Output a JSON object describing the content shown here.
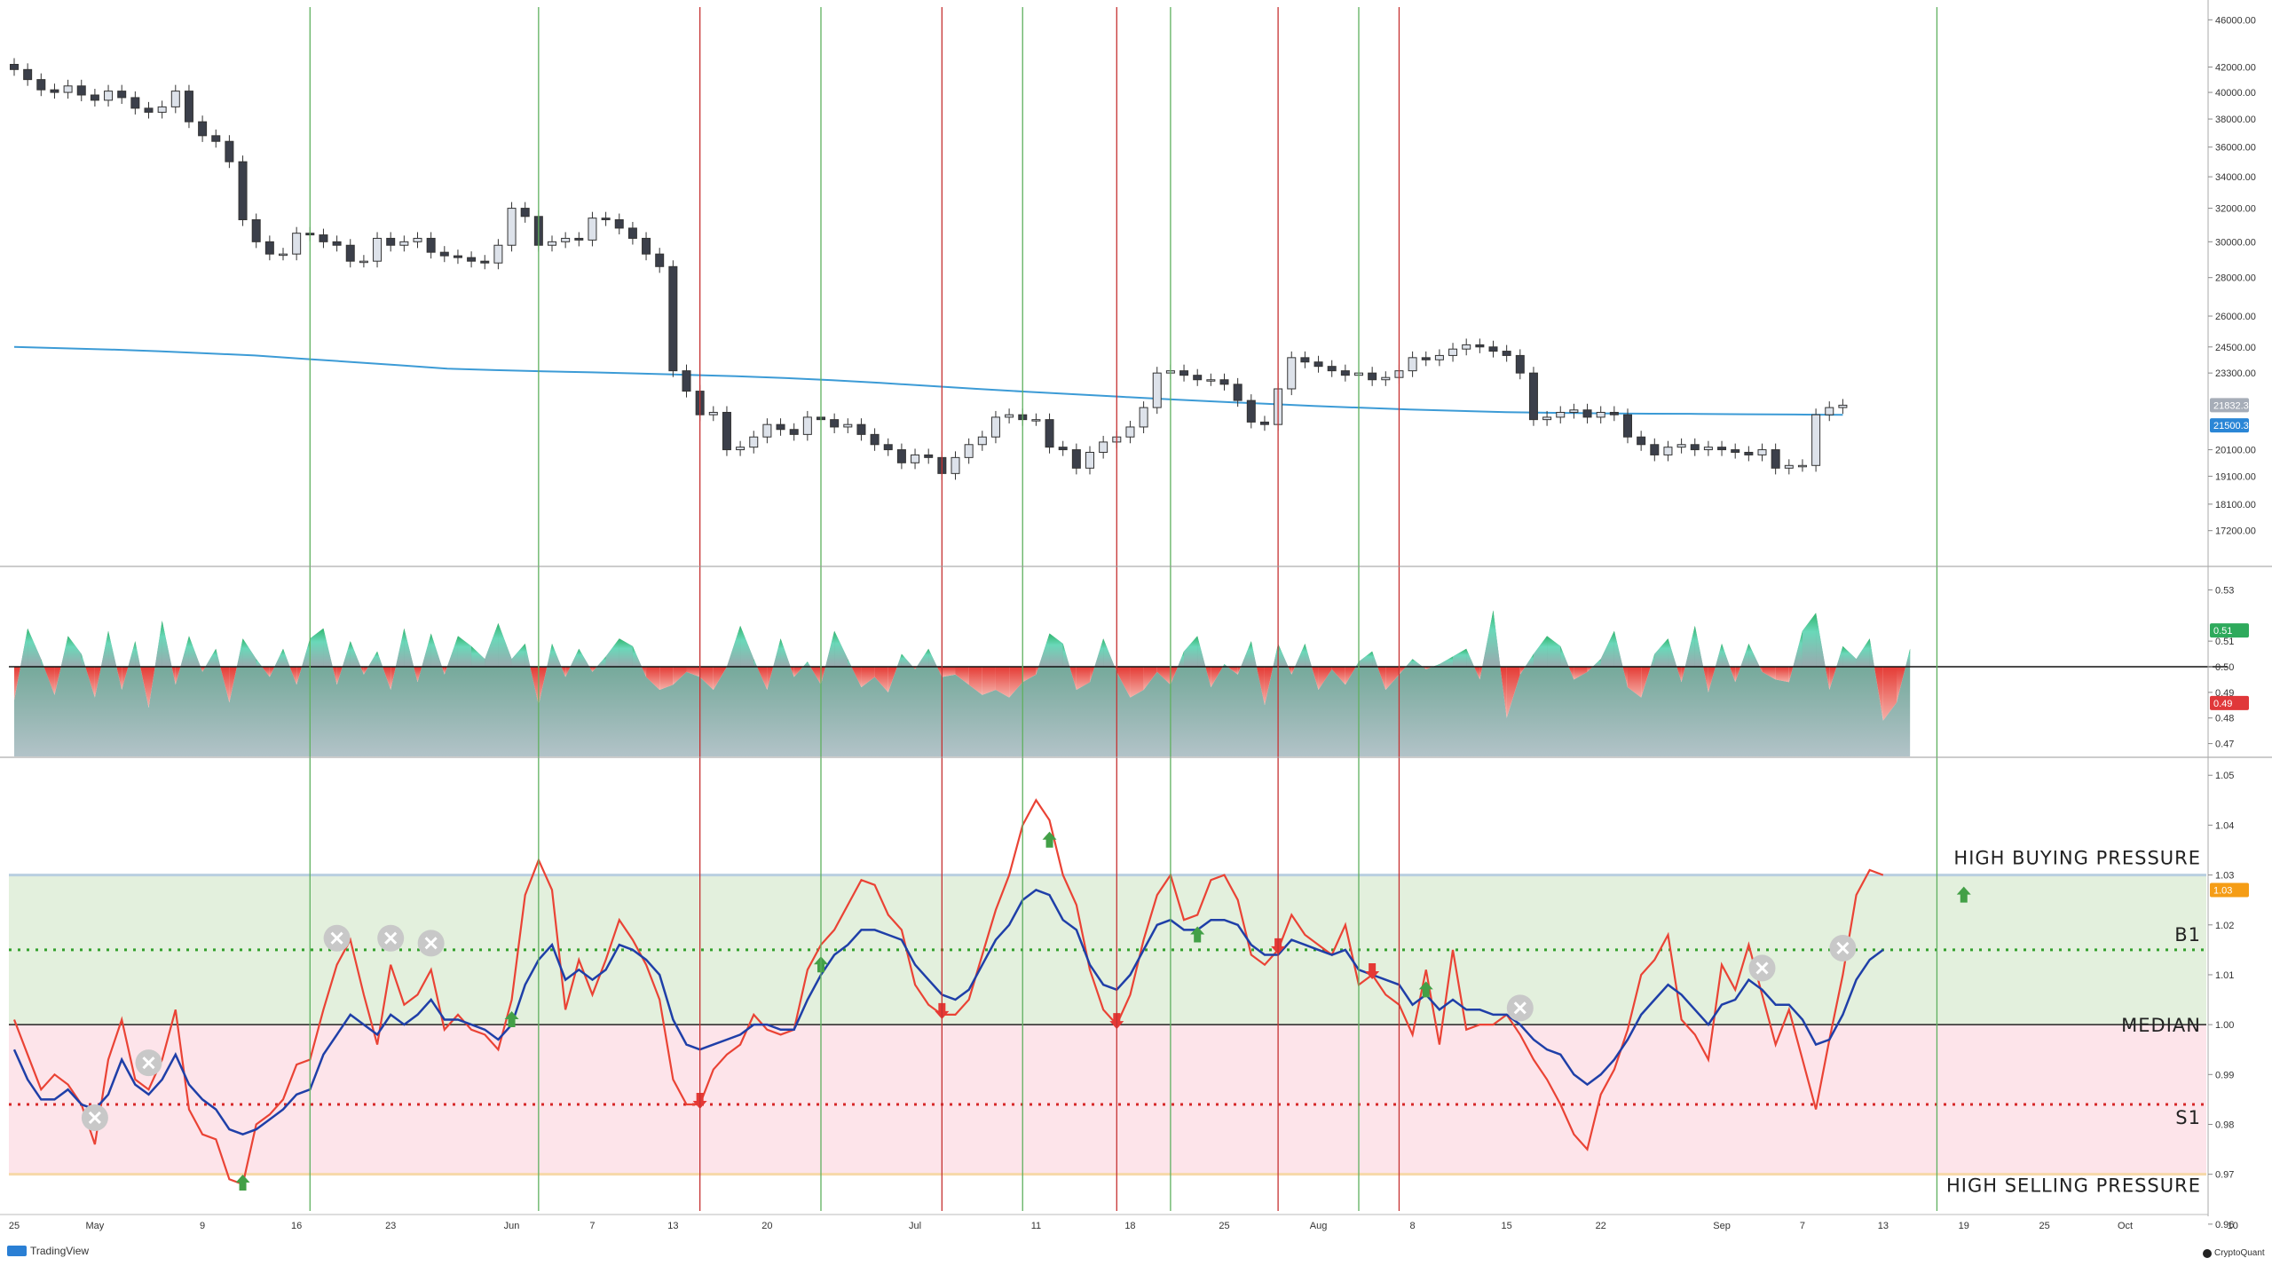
{
  "chart_data": {
    "type": "candlestick",
    "x_axis": {
      "tick_labels": [
        "25",
        "May",
        "9",
        "16",
        "23",
        "Jun",
        "7",
        "13",
        "20",
        "Jul",
        "11",
        "18",
        "25",
        "Aug",
        "8",
        "15",
        "22",
        "Sep",
        "7",
        "13",
        "19",
        "25",
        "Oct",
        "10"
      ],
      "tick_label_days": [
        0,
        6,
        14,
        21,
        28,
        37,
        43,
        49,
        56,
        67,
        76,
        83,
        90,
        97,
        104,
        111,
        118,
        127,
        133,
        139,
        145,
        151,
        157,
        165
      ]
    },
    "price_panel": {
      "y_scale": "log",
      "ylim": [
        16500,
        46500
      ],
      "y_tick_labels": [
        "46000.00",
        "42000.00",
        "40000.00",
        "38000.00",
        "36000.00",
        "34000.00",
        "32000.00",
        "30000.00",
        "28000.00",
        "26000.00",
        "24500.00",
        "23300.00",
        "20100.00",
        "19100.00",
        "18100.00",
        "17200.00"
      ],
      "y_tick_values": [
        46000,
        42000,
        40000,
        38000,
        36000,
        34000,
        32000,
        30000,
        28000,
        26000,
        24500,
        23300,
        20100,
        19100,
        18100,
        17200
      ],
      "close_prices": [
        41800,
        41000,
        40200,
        40000,
        40500,
        39800,
        39400,
        40100,
        39600,
        38800,
        38500,
        38900,
        40100,
        37800,
        36800,
        36400,
        35000,
        31300,
        30000,
        29300,
        29300,
        30500,
        30400,
        30000,
        29800,
        28900,
        28900,
        30200,
        29800,
        30000,
        30200,
        29400,
        29200,
        29100,
        28900,
        28800,
        29800,
        32000,
        31500,
        29800,
        30000,
        30200,
        30100,
        31400,
        31300,
        30800,
        30200,
        29300,
        28600,
        23400,
        22500,
        21500,
        21600,
        20100,
        20200,
        20600,
        21100,
        20900,
        20700,
        21400,
        21300,
        21000,
        21100,
        20700,
        20300,
        20100,
        19600,
        19900,
        19800,
        19200,
        19800,
        20300,
        20600,
        21400,
        21500,
        21300,
        21300,
        20200,
        20100,
        19400,
        20000,
        20400,
        20600,
        21000,
        21800,
        23300,
        23400,
        23200,
        23000,
        23000,
        22800,
        22100,
        21200,
        21100,
        22600,
        24000,
        23800,
        23600,
        23400,
        23200,
        23300,
        23000,
        23100,
        23400,
        24000,
        23900,
        24100,
        24400,
        24600,
        24500,
        24300,
        24100,
        23300,
        21300,
        21400,
        21600,
        21700,
        21400,
        21600,
        21500,
        20600,
        20300,
        19900,
        20200,
        20300,
        20100,
        20200,
        20100,
        20000,
        19900,
        20100,
        19400,
        19500,
        19500,
        21500,
        21800,
        21900
      ],
      "ma_label": "21500.32",
      "last_label": "21832.33",
      "ma_values": [
        24500,
        24440,
        24380,
        24300,
        24200,
        24100,
        23950,
        23800,
        23650,
        23500,
        23430,
        23380,
        23330,
        23280,
        23220,
        23160,
        23080,
        22980,
        22860,
        22730,
        22600,
        22480,
        22370,
        22260,
        22150,
        22050,
        21960,
        21870,
        21790,
        21720,
        21660,
        21610,
        21580,
        21560,
        21545,
        21535,
        21520,
        21510,
        21500
      ]
    },
    "ratio_panel": {
      "ylim": [
        0.465,
        0.535
      ],
      "y_tick_labels": [
        "0.53",
        "0.51",
        "0.50",
        "0.49",
        "0.48",
        "0.47"
      ],
      "y_tick_values": [
        0.53,
        0.51,
        0.5,
        0.49,
        0.48,
        0.47
      ],
      "baseline": 0.5,
      "badge_high": "0.51",
      "badge_low": "0.49",
      "values": [
        0.487,
        0.515,
        0.503,
        0.489,
        0.512,
        0.505,
        0.488,
        0.514,
        0.491,
        0.51,
        0.484,
        0.518,
        0.493,
        0.512,
        0.498,
        0.507,
        0.486,
        0.511,
        0.503,
        0.496,
        0.507,
        0.493,
        0.511,
        0.515,
        0.493,
        0.51,
        0.497,
        0.506,
        0.491,
        0.515,
        0.494,
        0.513,
        0.497,
        0.512,
        0.508,
        0.503,
        0.517,
        0.503,
        0.509,
        0.485,
        0.509,
        0.496,
        0.507,
        0.498,
        0.504,
        0.511,
        0.508,
        0.496,
        0.491,
        0.493,
        0.498,
        0.496,
        0.491,
        0.5,
        0.516,
        0.503,
        0.491,
        0.511,
        0.496,
        0.502,
        0.493,
        0.514,
        0.503,
        0.492,
        0.496,
        0.49,
        0.505,
        0.499,
        0.507,
        0.496,
        0.497,
        0.493,
        0.489,
        0.491,
        0.488,
        0.494,
        0.497,
        0.513,
        0.509,
        0.491,
        0.494,
        0.511,
        0.498,
        0.488,
        0.491,
        0.498,
        0.493,
        0.506,
        0.512,
        0.492,
        0.501,
        0.497,
        0.51,
        0.485,
        0.509,
        0.497,
        0.509,
        0.491,
        0.499,
        0.493,
        0.502,
        0.506,
        0.491,
        0.497,
        0.503,
        0.499,
        0.501,
        0.504,
        0.507,
        0.495,
        0.522,
        0.48,
        0.497,
        0.505,
        0.512,
        0.508,
        0.495,
        0.498,
        0.503,
        0.514,
        0.492,
        0.488,
        0.505,
        0.511,
        0.494,
        0.516,
        0.49,
        0.509,
        0.494,
        0.509,
        0.498,
        0.495,
        0.494,
        0.514,
        0.521,
        0.491,
        0.508,
        0.503,
        0.511,
        0.479,
        0.486,
        0.507
      ]
    },
    "oscillator_panel": {
      "ylim": [
        0.963,
        1.052
      ],
      "y_tick_labels": [
        "1.05",
        "1.04",
        "1.03",
        "1.02",
        "1.01",
        "1.00",
        "0.99",
        "0.98",
        "0.97",
        "0.96"
      ],
      "y_tick_values": [
        1.05,
        1.04,
        1.03,
        1.02,
        1.01,
        1.0,
        0.99,
        0.98,
        0.97,
        0.96
      ],
      "badge_label": "1.03",
      "bands": {
        "high_buying": 1.03,
        "b1": 1.015,
        "median": 1.0,
        "s1": 0.984,
        "high_selling": 0.97
      },
      "zone_labels": [
        "HIGH BUYING PRESSURE",
        "B1",
        "MEDIAN",
        "S1",
        "HIGH SELLING PRESSURE"
      ],
      "series": [
        {
          "values": [
            1.001,
            0.994,
            0.987,
            0.99,
            0.988,
            0.984,
            0.976,
            0.993,
            1.001,
            0.989,
            0.987,
            0.993,
            1.003,
            0.983,
            0.978,
            0.977,
            0.969,
            0.968,
            0.98,
            0.982,
            0.985,
            0.992,
            0.993,
            1.003,
            1.012,
            1.017,
            1.006,
            0.996,
            1.012,
            1.004,
            1.006,
            1.011,
            0.999,
            1.002,
            0.999,
            0.998,
            0.995,
            1.005,
            1.026,
            1.033,
            1.027,
            1.003,
            1.013,
            1.006,
            1.013,
            1.021,
            1.017,
            1.012,
            1.005,
            0.989,
            0.984,
            0.984,
            0.991,
            0.994,
            0.996,
            1.002,
            0.999,
            0.998,
            0.999,
            1.011,
            1.016,
            1.019,
            1.024,
            1.029,
            1.028,
            1.022,
            1.019,
            1.008,
            1.004,
            1.002,
            1.002,
            1.005,
            1.014,
            1.023,
            1.03,
            1.04,
            1.045,
            1.041,
            1.03,
            1.024,
            1.011,
            1.003,
            1.0,
            1.006,
            1.017,
            1.026,
            1.03,
            1.021,
            1.022,
            1.029,
            1.03,
            1.025,
            1.014,
            1.012,
            1.015,
            1.022,
            1.018,
            1.016,
            1.014,
            1.02,
            1.008,
            1.01,
            1.006,
            1.004,
            0.998,
            1.011,
            0.996,
            1.015,
            0.999,
            1.0,
            1.0,
            1.002,
            0.998,
            0.993,
            0.989,
            0.984,
            0.978,
            0.975,
            0.986,
            0.991,
            0.999,
            1.01,
            1.013,
            1.018,
            1.001,
            0.998,
            0.993,
            1.012,
            1.007,
            1.016,
            1.006,
            0.996,
            1.003,
            0.993,
            0.983,
            0.997,
            1.01,
            1.026,
            1.031,
            1.03
          ]
        },
        {
          "values": [
            0.995,
            0.989,
            0.985,
            0.985,
            0.987,
            0.984,
            0.983,
            0.986,
            0.993,
            0.988,
            0.986,
            0.989,
            0.994,
            0.988,
            0.985,
            0.983,
            0.979,
            0.978,
            0.979,
            0.981,
            0.983,
            0.986,
            0.987,
            0.994,
            0.998,
            1.002,
            1.0,
            0.998,
            1.002,
            1.0,
            1.002,
            1.005,
            1.001,
            1.001,
            1.0,
            0.999,
            0.997,
            1.0,
            1.008,
            1.013,
            1.016,
            1.009,
            1.011,
            1.009,
            1.011,
            1.016,
            1.015,
            1.013,
            1.01,
            1.001,
            0.996,
            0.995,
            0.996,
            0.997,
            0.998,
            1.0,
            1.0,
            0.999,
            0.999,
            1.005,
            1.01,
            1.014,
            1.016,
            1.019,
            1.019,
            1.018,
            1.017,
            1.012,
            1.009,
            1.006,
            1.005,
            1.007,
            1.012,
            1.017,
            1.02,
            1.025,
            1.027,
            1.026,
            1.021,
            1.019,
            1.012,
            1.008,
            1.007,
            1.01,
            1.015,
            1.02,
            1.021,
            1.019,
            1.019,
            1.021,
            1.021,
            1.02,
            1.016,
            1.014,
            1.014,
            1.017,
            1.016,
            1.015,
            1.014,
            1.015,
            1.011,
            1.01,
            1.009,
            1.008,
            1.004,
            1.006,
            1.003,
            1.005,
            1.003,
            1.003,
            1.002,
            1.002,
            1.0,
            0.997,
            0.995,
            0.994,
            0.99,
            0.988,
            0.99,
            0.993,
            0.997,
            1.002,
            1.005,
            1.008,
            1.006,
            1.003,
            1.0,
            1.004,
            1.005,
            1.009,
            1.007,
            1.004,
            1.004,
            1.001,
            0.996,
            0.997,
            1.002,
            1.009,
            1.013,
            1.015
          ]
        }
      ],
      "markers": {
        "up_arrow_days": [
          17,
          37,
          60,
          77,
          88,
          105,
          145
        ],
        "down_arrow_days": [
          51,
          69,
          82,
          94,
          101
        ],
        "cross_days": [
          6,
          10,
          24,
          28,
          31,
          112,
          130,
          136
        ]
      }
    },
    "signal_lines": {
      "green_days": [
        22,
        39,
        60,
        75,
        86,
        100,
        143
      ],
      "red_days": [
        51,
        69,
        82,
        94,
        103
      ]
    }
  },
  "footer": {
    "left_brand": "TradingView",
    "right_brand": "CryptoQuant"
  },
  "colors": {
    "candle_up": "#dde2ea",
    "candle_down": "#3b3f4a",
    "ma_line": "#3c9bd6",
    "ratio_buy": "#3cb371",
    "ratio_sell": "#e8453c",
    "osc_red": "#ea4335",
    "osc_blue": "#1f3fa8",
    "zone_green": "#e3f0dd",
    "zone_pink": "#fde4ea",
    "signal_green": "#5fb05f",
    "signal_red": "#c63232",
    "badge_green": "#2eaa5c",
    "badge_red": "#e0383a",
    "badge_orange": "#f59d16",
    "badge_blue": "#2a86d6"
  }
}
